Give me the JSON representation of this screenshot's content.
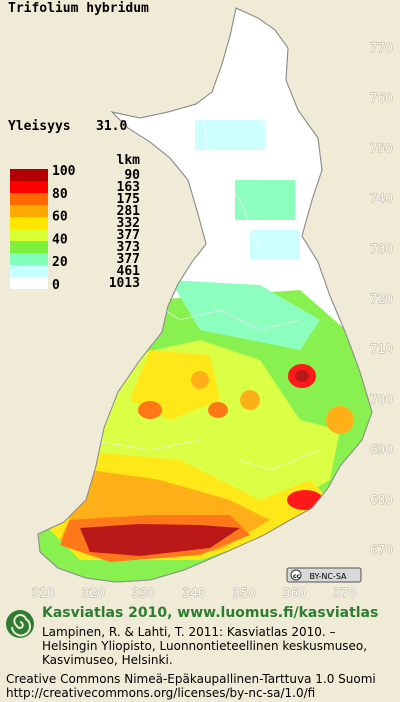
{
  "title": "Trifolium hybridum",
  "frequency": {
    "label": "Yleisyys",
    "value": "31.0"
  },
  "legend": {
    "count_header": "lkm",
    "scale_labels": [
      "100",
      "80",
      "60",
      "40",
      "20",
      "0"
    ],
    "classes": [
      {
        "color": "#b40000",
        "count": "90"
      },
      {
        "color": "#ff0000",
        "count": "163"
      },
      {
        "color": "#ff6a00",
        "count": "175"
      },
      {
        "color": "#ffa800",
        "count": "281"
      },
      {
        "color": "#ffe600",
        "count": "332"
      },
      {
        "color": "#d8ff30",
        "count": "377"
      },
      {
        "color": "#7cf03c",
        "count": "373"
      },
      {
        "color": "#80ffb8",
        "count": "377"
      },
      {
        "color": "#c8ffff",
        "count": "461"
      },
      {
        "color": "#ffffff",
        "count": "1013"
      }
    ]
  },
  "grid": {
    "north": [
      "770",
      "760",
      "750",
      "740",
      "730",
      "720",
      "710",
      "700",
      "690",
      "680",
      "670"
    ],
    "east": [
      "310",
      "320",
      "330",
      "340",
      "350",
      "360",
      "370"
    ]
  },
  "license_badge": "BY-NC-SA",
  "footer": {
    "heading": "Kasviatlas 2010, www.luomus.fi/kasviatlas",
    "citation": [
      "Lampinen, R. & Lahti, T. 2011: Kasviatlas 2010. –",
      "Helsingin Yliopisto, Luonnontieteellinen keskusmuseo,",
      "Kasvimuseo, Helsinki."
    ],
    "license": [
      "Creative Commons Nimeä-Epäkaupallinen-Tarttuva 1.0 Suomi",
      "http://creativecommons.org/licenses/by-nc-sa/1.0/fi"
    ]
  }
}
